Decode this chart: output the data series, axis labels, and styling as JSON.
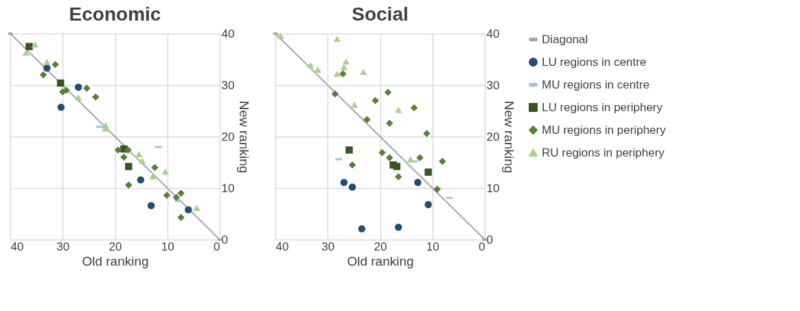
{
  "chart_data": [
    {
      "type": "scatter",
      "title": "Economic",
      "xlabel": "Old ranking",
      "ylabel": "New ranking",
      "xlim": [
        40,
        0
      ],
      "ylim": [
        0,
        40
      ],
      "xticks": [
        40,
        30,
        20,
        10,
        0
      ],
      "yticks": [
        0,
        10,
        20,
        30,
        40
      ],
      "grid": true,
      "legend": "right",
      "series": [
        {
          "name": "Diagonal",
          "type": "line",
          "color": "#a6a6a6",
          "x": [
            40,
            0
          ],
          "values": [
            40,
            0
          ]
        },
        {
          "name": "LU regions in centre",
          "color": "#1f4e79",
          "marker": "circle",
          "x": [
            33.0,
            27.0,
            30.3,
            15.1,
            13.1,
            6.0
          ],
          "values": [
            33.3,
            29.6,
            25.7,
            11.6,
            6.6,
            5.8
          ]
        },
        {
          "name": "MU regions in centre",
          "color": "#9dc3e6",
          "x": [
            23.0,
            11.7,
            7.9
          ],
          "values": [
            21.9,
            18.0,
            7.5
          ]
        },
        {
          "name": "LU regions in periphery",
          "color": "#375623",
          "marker": "square",
          "x": [
            36.4,
            30.4,
            18.3,
            17.4
          ],
          "values": [
            37.5,
            30.4,
            17.6,
            14.2
          ]
        },
        {
          "name": "MU regions in periphery",
          "color": "#548235",
          "marker": "diamond",
          "x": [
            31.4,
            33.7,
            30.0,
            29.3,
            25.4,
            23.7,
            19.4,
            17.5,
            18.3,
            12.4,
            17.4,
            10.1,
            8.3,
            7.4,
            7.4
          ],
          "values": [
            34.0,
            32.0,
            28.7,
            29.0,
            29.4,
            27.7,
            17.4,
            17.4,
            16.0,
            14.0,
            10.6,
            8.6,
            8.2,
            9.0,
            4.3
          ]
        },
        {
          "name": "RU regions in periphery",
          "color": "#a9d18e",
          "marker": "triangle",
          "x": [
            35.3,
            37.0,
            33.0,
            27.0,
            21.8,
            21.9,
            15.4,
            14.8,
            10.4,
            12.8,
            4.4
          ],
          "values": [
            37.9,
            36.3,
            34.5,
            27.6,
            22.2,
            21.6,
            16.6,
            15.3,
            13.2,
            12.3,
            6.2
          ]
        }
      ]
    },
    {
      "type": "scatter",
      "title": "Social",
      "xlabel": "Old ranking",
      "ylabel": "New ranking",
      "xlim": [
        40,
        0
      ],
      "ylim": [
        0,
        40
      ],
      "xticks": [
        40,
        30,
        20,
        10,
        0
      ],
      "yticks": [
        0,
        10,
        20,
        30,
        40
      ],
      "grid": true,
      "legend": "right",
      "series": [
        {
          "name": "Diagonal",
          "type": "line",
          "color": "#a6a6a6",
          "x": [
            40,
            0
          ],
          "values": [
            40,
            0
          ]
        },
        {
          "name": "LU regions in centre",
          "color": "#1f4e79",
          "marker": "circle",
          "x": [
            26.9,
            25.3,
            23.5,
            16.5,
            12.8,
            10.8
          ],
          "values": [
            11.1,
            10.2,
            2.1,
            2.4,
            11.1,
            6.8
          ]
        },
        {
          "name": "MU regions in centre",
          "color": "#9dc3e6",
          "x": [
            27.9,
            13.4,
            6.8
          ],
          "values": [
            15.6,
            15.2,
            8.1
          ]
        },
        {
          "name": "LU regions in periphery",
          "color": "#375623",
          "marker": "square",
          "x": [
            25.9,
            17.5,
            16.8,
            10.8
          ],
          "values": [
            17.4,
            14.5,
            14.2,
            13.1
          ]
        },
        {
          "name": "MU regions in periphery",
          "color": "#548235",
          "marker": "diamond",
          "x": [
            27.1,
            28.6,
            18.5,
            20.9,
            13.5,
            22.5,
            18.2,
            11.1,
            19.6,
            18.2,
            12.4,
            8.1,
            25.3,
            16.5,
            9.1
          ],
          "values": [
            32.2,
            28.3,
            28.6,
            27.0,
            25.6,
            23.3,
            22.6,
            20.6,
            16.9,
            15.9,
            15.9,
            15.2,
            14.5,
            12.2,
            9.8
          ]
        },
        {
          "name": "RU regions in periphery",
          "color": "#a9d18e",
          "marker": "triangle",
          "x": [
            39.0,
            28.2,
            33.3,
            31.9,
            26.5,
            26.9,
            28.2,
            23.2,
            24.9,
            16.5,
            14.2
          ],
          "values": [
            39.6,
            39.0,
            33.9,
            33.0,
            34.6,
            33.5,
            32.2,
            32.6,
            26.2,
            25.2,
            15.6
          ]
        }
      ]
    }
  ]
}
